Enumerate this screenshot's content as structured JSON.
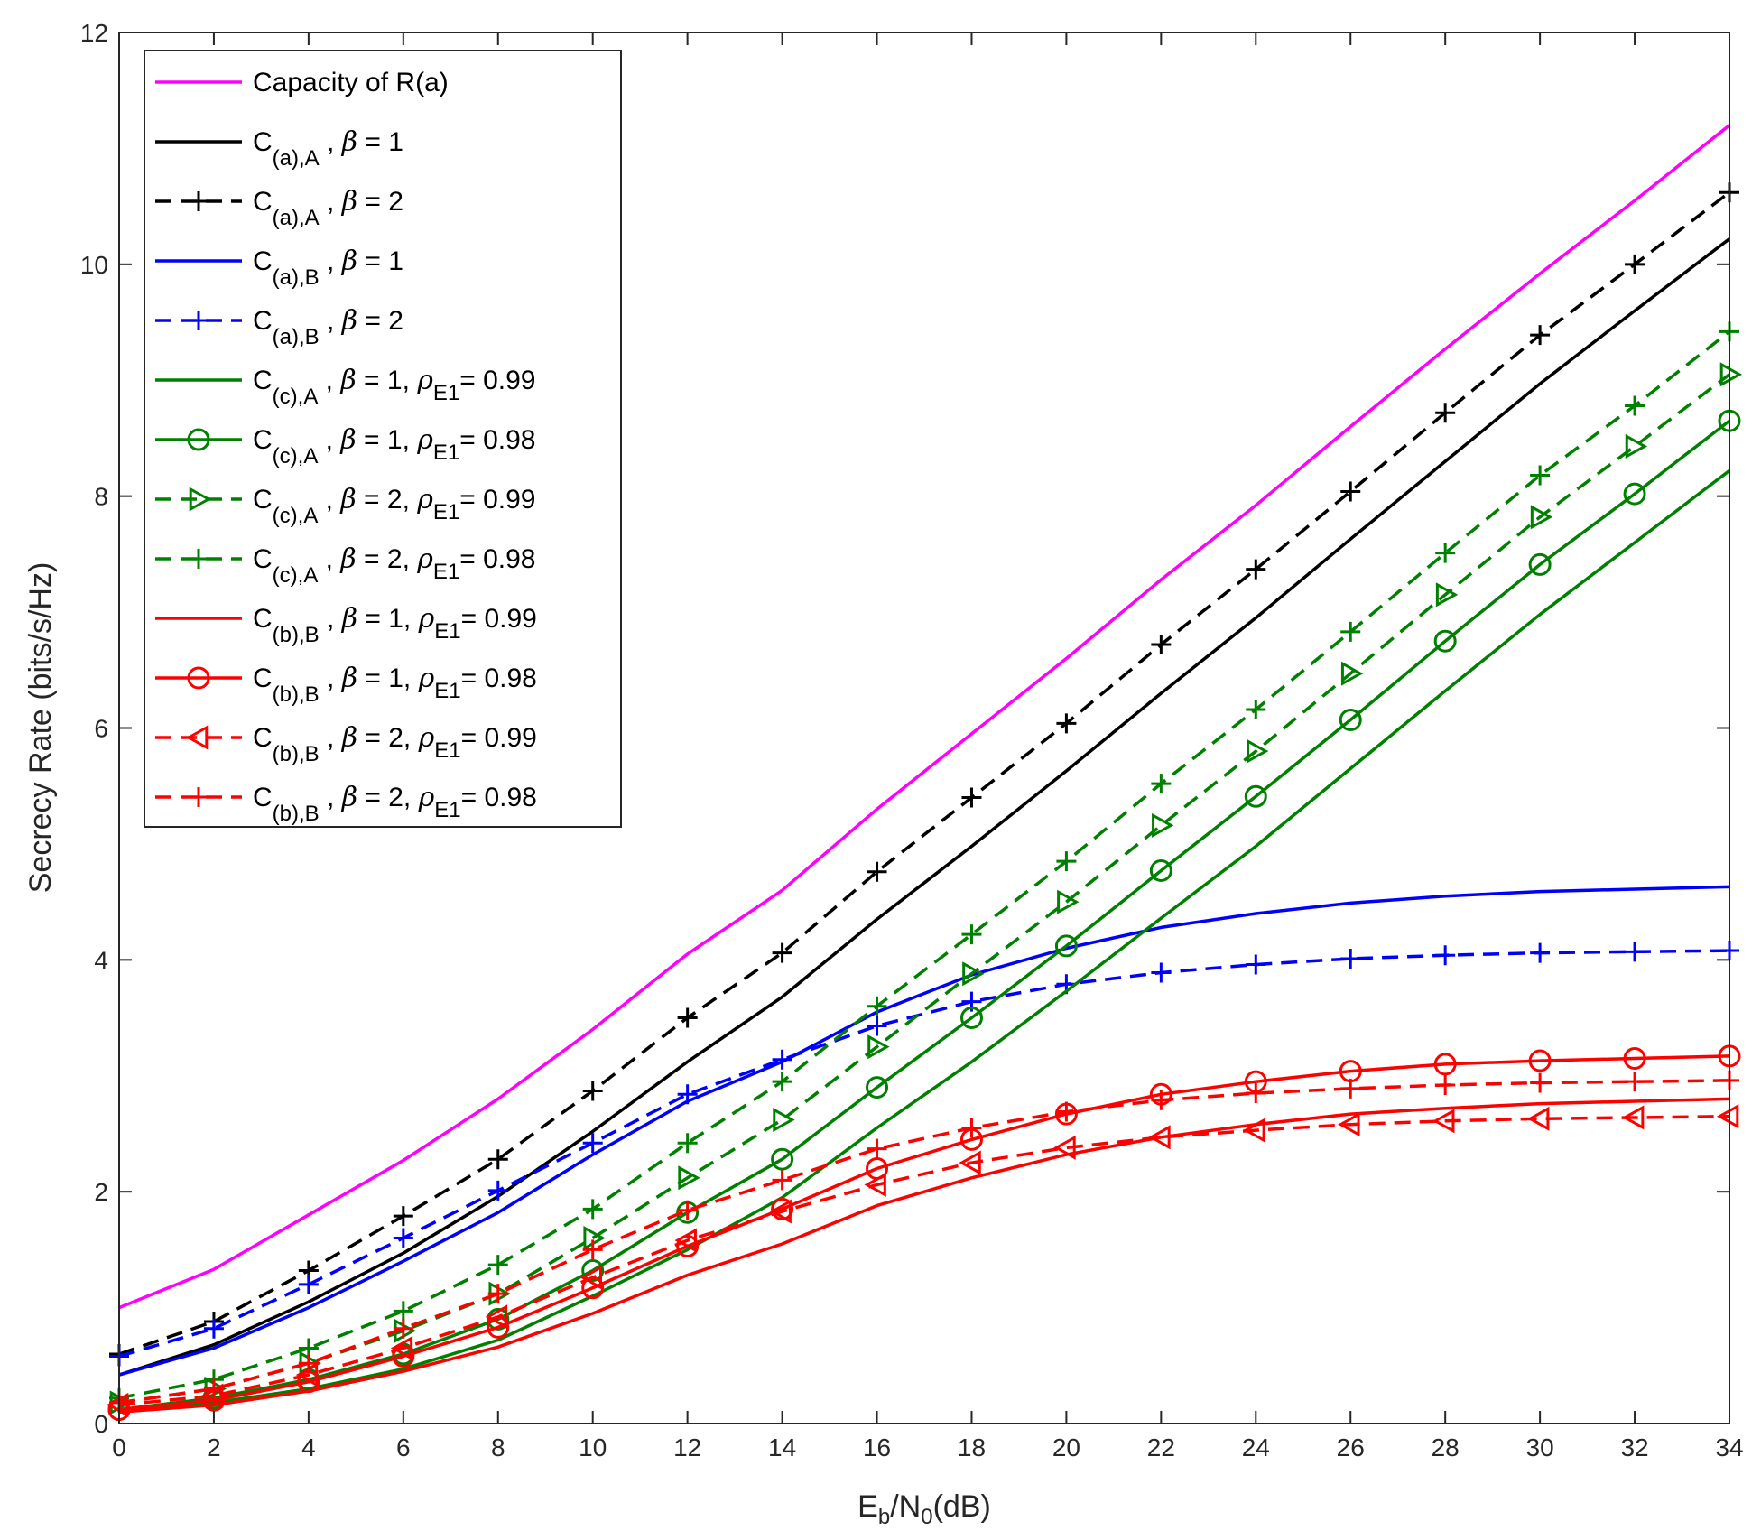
{
  "chart_data": {
    "type": "line",
    "title": "",
    "xlabel": {
      "main": "E",
      "sub": "b",
      "mid": "/N",
      "sub2": "0",
      "tail": "(dB)"
    },
    "ylabel": "Secrecy Rate (bits/s/Hz)",
    "xlim": [
      0,
      34
    ],
    "ylim": [
      0,
      12
    ],
    "xticks": [
      0,
      2,
      4,
      6,
      8,
      10,
      12,
      14,
      16,
      18,
      20,
      22,
      24,
      26,
      28,
      30,
      32,
      34
    ],
    "yticks": [
      0,
      2,
      4,
      6,
      8,
      10,
      12
    ],
    "grid": false,
    "legend_position": "top-left",
    "x": [
      0,
      2,
      4,
      6,
      8,
      10,
      12,
      14,
      16,
      18,
      20,
      22,
      24,
      26,
      28,
      30,
      32,
      34
    ],
    "series": [
      {
        "name": "Capacity of R(a)",
        "legend": {
          "pre": "Capacity of R(a)"
        },
        "color": "#ff00ff",
        "dash": "solid",
        "marker": "none",
        "values": [
          1.0,
          1.33,
          1.8,
          2.27,
          2.8,
          3.4,
          4.05,
          4.6,
          5.3,
          5.95,
          6.6,
          7.28,
          7.92,
          8.6,
          9.27,
          9.92,
          10.55,
          11.2
        ]
      },
      {
        "name": "C(a),A , β = 1",
        "legend": {
          "pre": "C",
          "sub": "(a),A",
          "mid": " , ",
          "beta": "β",
          "post": " = 1"
        },
        "color": "#000000",
        "dash": "solid",
        "marker": "none",
        "values": [
          0.42,
          0.68,
          1.05,
          1.47,
          1.96,
          2.52,
          3.12,
          3.68,
          4.35,
          4.98,
          5.63,
          6.3,
          6.95,
          7.63,
          8.3,
          8.97,
          9.6,
          10.22
        ]
      },
      {
        "name": "C(a),A , β = 2",
        "legend": {
          "pre": "C",
          "sub": "(a),A",
          "mid": " , ",
          "beta": "β",
          "post": " = 2"
        },
        "color": "#000000",
        "dash": "dashed",
        "marker": "plus",
        "values": [
          0.6,
          0.88,
          1.32,
          1.79,
          2.28,
          2.87,
          3.5,
          4.06,
          4.76,
          5.4,
          6.04,
          6.72,
          7.37,
          8.04,
          8.72,
          9.39,
          10.0,
          10.62
        ]
      },
      {
        "name": "C(a),B , β = 1",
        "legend": {
          "pre": "C",
          "sub": "(a),B",
          "mid": " , ",
          "beta": "β",
          "post": " = 1"
        },
        "color": "#0000ff",
        "dash": "solid",
        "marker": "none",
        "values": [
          0.42,
          0.65,
          1.0,
          1.4,
          1.82,
          2.32,
          2.78,
          3.12,
          3.55,
          3.87,
          4.1,
          4.28,
          4.4,
          4.49,
          4.55,
          4.59,
          4.61,
          4.63
        ]
      },
      {
        "name": "C(a),B , β = 2",
        "legend": {
          "pre": "C",
          "sub": "(a),B",
          "mid": " , ",
          "beta": "β",
          "post": " = 2"
        },
        "color": "#0000ff",
        "dash": "dashed",
        "marker": "plus",
        "values": [
          0.58,
          0.82,
          1.2,
          1.6,
          2.01,
          2.42,
          2.84,
          3.14,
          3.43,
          3.64,
          3.79,
          3.89,
          3.96,
          4.01,
          4.04,
          4.06,
          4.07,
          4.08
        ]
      },
      {
        "name": "C(c),A , β = 1, ρE1= 0.99",
        "legend": {
          "pre": "C",
          "sub": "(c),A",
          "mid": " , ",
          "beta": "β",
          "post": " = 1, ",
          "rho": "ρ",
          "rsub": "E1",
          "val": "= 0.99"
        },
        "color": "#008000",
        "dash": "solid",
        "marker": "none",
        "values": [
          0.1,
          0.18,
          0.3,
          0.47,
          0.72,
          1.1,
          1.5,
          1.95,
          2.55,
          3.12,
          3.73,
          4.36,
          4.98,
          5.65,
          6.32,
          6.98,
          7.6,
          8.22
        ]
      },
      {
        "name": "C(c),A , β = 1, ρE1= 0.98",
        "legend": {
          "pre": "C",
          "sub": "(c),A",
          "mid": " , ",
          "beta": "β",
          "post": " = 1, ",
          "rho": "ρ",
          "rsub": "E1",
          "val": "= 0.98"
        },
        "color": "#008000",
        "dash": "solid",
        "marker": "circle",
        "values": [
          0.12,
          0.22,
          0.38,
          0.6,
          0.9,
          1.32,
          1.82,
          2.28,
          2.9,
          3.5,
          4.12,
          4.77,
          5.41,
          6.07,
          6.75,
          7.41,
          8.02,
          8.65
        ]
      },
      {
        "name": "C(c),A , β = 2, ρE1= 0.99",
        "legend": {
          "pre": "C",
          "sub": "(c),A",
          "mid": " , ",
          "beta": "β",
          "post": " = 2, ",
          "rho": "ρ",
          "rsub": "E1",
          "val": "= 0.99"
        },
        "color": "#008000",
        "dash": "dashed",
        "marker": "triangle-right",
        "values": [
          0.18,
          0.3,
          0.52,
          0.8,
          1.12,
          1.6,
          2.12,
          2.62,
          3.25,
          3.88,
          4.5,
          5.16,
          5.8,
          6.47,
          7.15,
          7.82,
          8.43,
          9.05
        ]
      },
      {
        "name": "C(c),A , β = 2, ρE1= 0.98",
        "legend": {
          "pre": "C",
          "sub": "(c),A",
          "mid": " , ",
          "beta": "β",
          "post": " = 2, ",
          "rho": "ρ",
          "rsub": "E1",
          "val": "= 0.98"
        },
        "color": "#008000",
        "dash": "dashed",
        "marker": "plus",
        "values": [
          0.22,
          0.38,
          0.65,
          0.97,
          1.37,
          1.85,
          2.42,
          2.95,
          3.6,
          4.22,
          4.85,
          5.52,
          6.16,
          6.83,
          7.51,
          8.18,
          8.78,
          9.42
        ]
      },
      {
        "name": "C(b),B , β = 1, ρE1= 0.99",
        "legend": {
          "pre": "C",
          "sub": "(b),B",
          "mid": " , ",
          "beta": "β",
          "post": " = 1, ",
          "rho": "ρ",
          "rsub": "E1",
          "val": "= 0.99"
        },
        "color": "#ff0000",
        "dash": "solid",
        "marker": "none",
        "values": [
          0.1,
          0.16,
          0.28,
          0.45,
          0.66,
          0.95,
          1.28,
          1.55,
          1.88,
          2.12,
          2.32,
          2.47,
          2.58,
          2.67,
          2.72,
          2.76,
          2.78,
          2.8
        ]
      },
      {
        "name": "C(b),B , β = 1, ρE1= 0.98",
        "legend": {
          "pre": "C",
          "sub": "(b),B",
          "mid": " , ",
          "beta": "β",
          "post": " = 1, ",
          "rho": "ρ",
          "rsub": "E1",
          "val": "= 0.98"
        },
        "color": "#ff0000",
        "dash": "solid",
        "marker": "circle",
        "values": [
          0.12,
          0.2,
          0.36,
          0.58,
          0.83,
          1.17,
          1.53,
          1.85,
          2.2,
          2.45,
          2.67,
          2.84,
          2.95,
          3.04,
          3.1,
          3.13,
          3.15,
          3.17
        ]
      },
      {
        "name": "C(b),B , β = 2, ρE1= 0.99",
        "legend": {
          "pre": "C",
          "sub": "(b),B",
          "mid": " , ",
          "beta": "β",
          "post": " = 2, ",
          "rho": "ρ",
          "rsub": "E1",
          "val": "= 0.99"
        },
        "color": "#ff0000",
        "dash": "dashed",
        "marker": "triangle-left",
        "values": [
          0.16,
          0.24,
          0.42,
          0.65,
          0.92,
          1.26,
          1.58,
          1.83,
          2.06,
          2.25,
          2.38,
          2.47,
          2.53,
          2.58,
          2.61,
          2.63,
          2.64,
          2.65
        ]
      },
      {
        "name": "C(b),B , β = 2, ρE1= 0.98",
        "legend": {
          "pre": "C",
          "sub": "(b),B",
          "mid": " , ",
          "beta": "β",
          "post": " = 2, ",
          "rho": "ρ",
          "rsub": "E1",
          "val": "= 0.98"
        },
        "color": "#ff0000",
        "dash": "dashed",
        "marker": "plus",
        "values": [
          0.18,
          0.3,
          0.52,
          0.82,
          1.12,
          1.5,
          1.84,
          2.1,
          2.37,
          2.55,
          2.69,
          2.79,
          2.85,
          2.89,
          2.92,
          2.94,
          2.95,
          2.96
        ]
      }
    ]
  }
}
